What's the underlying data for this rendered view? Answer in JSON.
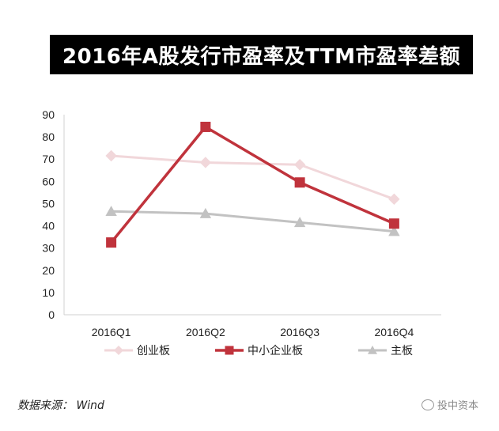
{
  "title": "2016年A股发行市盈率及TTM市盈率差额",
  "chart_data": {
    "type": "line",
    "categories": [
      "2016Q1",
      "2016Q2",
      "2016Q3",
      "2016Q4"
    ],
    "ylim": [
      0,
      90
    ],
    "yticks": [
      0,
      10,
      20,
      30,
      40,
      50,
      60,
      70,
      80,
      90
    ],
    "grid": false,
    "legend_placement": "bottom",
    "series": [
      {
        "name": "创业板",
        "values": [
          71.5,
          68.5,
          67.5,
          52
        ],
        "color": "#f1d7da",
        "marker": "diamond"
      },
      {
        "name": "中小企业板",
        "values": [
          32.5,
          84.5,
          59.5,
          41
        ],
        "color": "#c0333c",
        "marker": "square"
      },
      {
        "name": "主板",
        "values": [
          46.5,
          45.5,
          41.5,
          37.5
        ],
        "color": "#c2c2c2",
        "marker": "triangle"
      }
    ]
  },
  "source": "数据来源： Wind",
  "watermark": "投中资本"
}
